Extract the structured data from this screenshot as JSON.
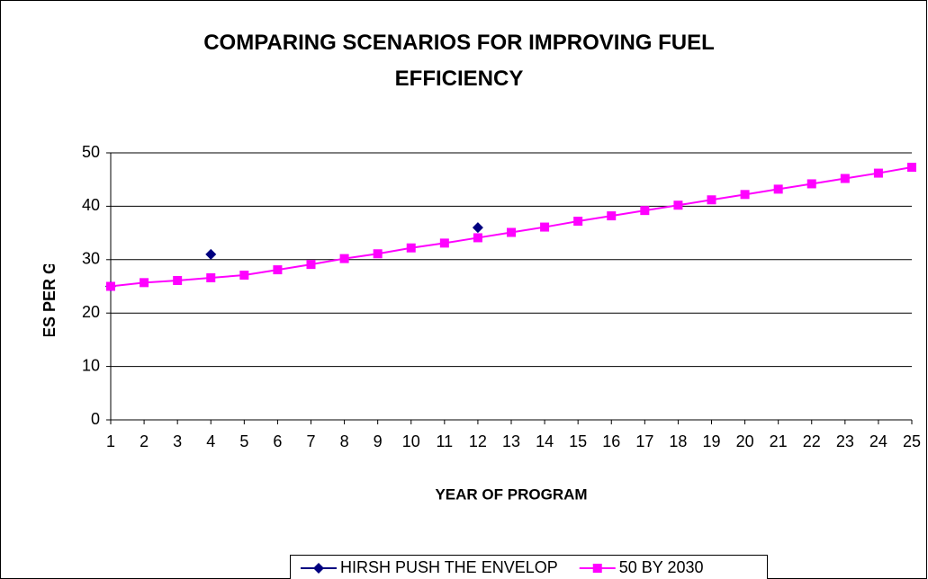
{
  "chart_data": {
    "type": "line",
    "title": "COMPARING SCENARIOS FOR IMPROVING FUEL EFFICIENCY",
    "x_label": "YEAR OF PROGRAM",
    "y_label": "MILES PER GALLON",
    "categories": [
      1,
      2,
      3,
      4,
      5,
      6,
      7,
      8,
      9,
      10,
      11,
      12,
      13,
      14,
      15,
      16,
      17,
      18,
      19,
      20,
      21,
      22,
      23,
      24,
      25
    ],
    "series": [
      {
        "name": "HIRSH PUSH THE ENVELOP",
        "color": "#000080",
        "marker": "diamond",
        "values": [
          25,
          null,
          null,
          31,
          null,
          null,
          null,
          null,
          null,
          null,
          null,
          36,
          null,
          null,
          null,
          null,
          null,
          null,
          null,
          null,
          null,
          null,
          null,
          null,
          null
        ]
      },
      {
        "name": "50 BY 2030",
        "color": "#ff00ff",
        "marker": "square",
        "values": [
          25,
          25.7,
          26.1,
          26.6,
          27.1,
          28.1,
          29.1,
          30.2,
          31.1,
          32.2,
          33.1,
          34.1,
          35.1,
          36.1,
          37.2,
          38.2,
          39.2,
          40.2,
          41.2,
          42.2,
          43.2,
          44.2,
          45.2,
          46.2,
          47.3
        ]
      }
    ],
    "ylim": [
      0,
      50
    ],
    "yticks": [
      0,
      10,
      20,
      30,
      40,
      50
    ],
    "grid": true,
    "legend": "bottom"
  }
}
